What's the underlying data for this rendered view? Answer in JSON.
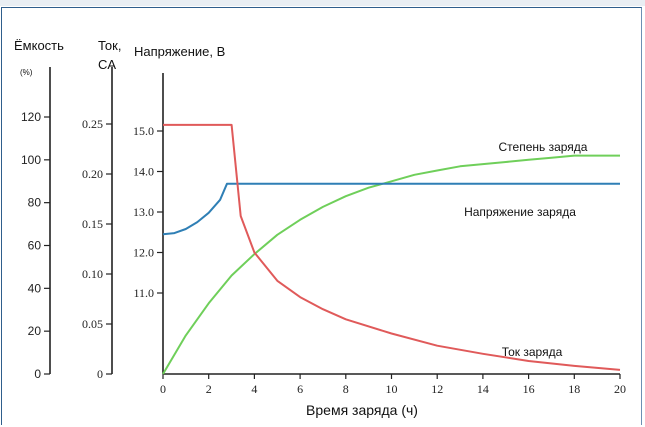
{
  "chart_data": {
    "type": "line",
    "xlabel": "Время заряда (ч)",
    "axes": {
      "capacity": {
        "label": "Ёмкость",
        "unit": "(%)",
        "range": [
          0,
          120
        ],
        "ticks": [
          "0",
          "20",
          "40",
          "60",
          "80",
          "100",
          "120"
        ]
      },
      "current": {
        "label": "Ток,",
        "unit": "CA",
        "range": [
          0,
          0.25
        ],
        "ticks": [
          "0",
          "0.05",
          "0.10",
          "0.15",
          "0.20",
          "0.25"
        ]
      },
      "voltage": {
        "label": "Напряжение, В",
        "range": [
          9.0,
          15.0
        ],
        "ticks": [
          "11.0",
          "12.0",
          "13.0",
          "14.0",
          "15.0"
        ]
      }
    },
    "x_ticks": [
      "0",
      "2",
      "4",
      "6",
      "8",
      "10",
      "12",
      "14",
      "16",
      "18",
      "20"
    ],
    "xlim": [
      0,
      20
    ],
    "series": [
      {
        "name": "Степень заряда",
        "color": "#6fcf5a",
        "axis": "capacity",
        "x": [
          0,
          1,
          2,
          3,
          4,
          5,
          6,
          7,
          8,
          9,
          10,
          11,
          12,
          13,
          14,
          15,
          16,
          17,
          18,
          19,
          20
        ],
        "y": [
          0,
          18,
          33,
          46,
          56,
          65,
          72,
          78,
          83,
          87,
          90,
          93,
          95,
          97,
          98,
          99,
          100,
          101,
          102,
          102,
          102
        ]
      },
      {
        "name": "Напряжение заряда",
        "color": "#2f7fb5",
        "axis": "voltage",
        "x": [
          0,
          0.5,
          1,
          1.5,
          2,
          2.5,
          2.8,
          3,
          20
        ],
        "y": [
          12.45,
          12.48,
          12.58,
          12.75,
          12.98,
          13.3,
          13.7,
          13.7,
          13.7
        ]
      },
      {
        "name": "Ток заряда",
        "color": "#e05a5a",
        "axis": "voltage",
        "x": [
          0,
          3.0,
          3.4,
          4,
          5,
          6,
          7,
          8,
          10,
          12,
          14,
          16,
          18,
          20
        ],
        "y": [
          15.15,
          15.15,
          12.9,
          12.0,
          11.3,
          10.9,
          10.6,
          10.35,
          10.0,
          9.7,
          9.5,
          9.32,
          9.2,
          9.1
        ]
      }
    ]
  }
}
